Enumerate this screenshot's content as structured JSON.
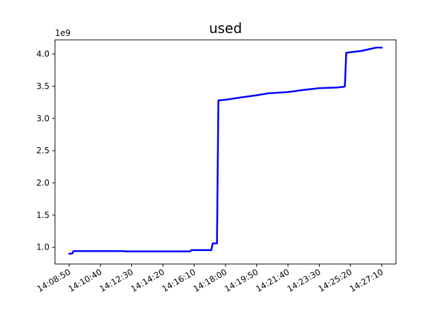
{
  "chart_data": {
    "type": "line",
    "title": "used",
    "xlabel": "",
    "ylabel": "",
    "y_multiplier_label": "1e9",
    "x_tick_labels": [
      "14:08:50",
      "14:10:40",
      "14:12:30",
      "14:14:20",
      "14:16:10",
      "14:18:00",
      "14:19:50",
      "14:21:40",
      "14:23:30",
      "14:25:20",
      "14:27:10"
    ],
    "y_ticks": [
      1.0,
      1.5,
      2.0,
      2.5,
      3.0,
      3.5,
      4.0
    ],
    "y_tick_labels": [
      "1.0",
      "1.5",
      "2.0",
      "2.5",
      "3.0",
      "3.5",
      "4.0"
    ],
    "xlim": [
      "14:08:00",
      "14:28:00"
    ],
    "ylim": [
      0.74,
      4.22
    ],
    "grid": false,
    "series": [
      {
        "color": "#0000ff",
        "points": [
          [
            "14:08:50",
            0.9
          ],
          [
            "14:09:00",
            0.9
          ],
          [
            "14:09:05",
            0.94
          ],
          [
            "14:10:40",
            0.94
          ],
          [
            "14:12:00",
            0.94
          ],
          [
            "14:12:10",
            0.935
          ],
          [
            "14:14:20",
            0.935
          ],
          [
            "14:15:55",
            0.935
          ],
          [
            "14:16:00",
            0.955
          ],
          [
            "14:17:10",
            0.955
          ],
          [
            "14:17:15",
            1.06
          ],
          [
            "14:17:30",
            1.06
          ],
          [
            "14:17:35",
            3.28
          ],
          [
            "14:18:00",
            3.29
          ],
          [
            "14:19:00",
            3.33
          ],
          [
            "14:19:50",
            3.36
          ],
          [
            "14:20:30",
            3.39
          ],
          [
            "14:21:40",
            3.41
          ],
          [
            "14:22:30",
            3.44
          ],
          [
            "14:23:30",
            3.47
          ],
          [
            "14:24:30",
            3.48
          ],
          [
            "14:24:55",
            3.49
          ],
          [
            "14:25:00",
            3.5
          ],
          [
            "14:25:05",
            4.02
          ],
          [
            "14:26:00",
            4.05
          ],
          [
            "14:26:30",
            4.08
          ],
          [
            "14:26:50",
            4.1
          ],
          [
            "14:27:10",
            4.1
          ]
        ]
      }
    ]
  }
}
